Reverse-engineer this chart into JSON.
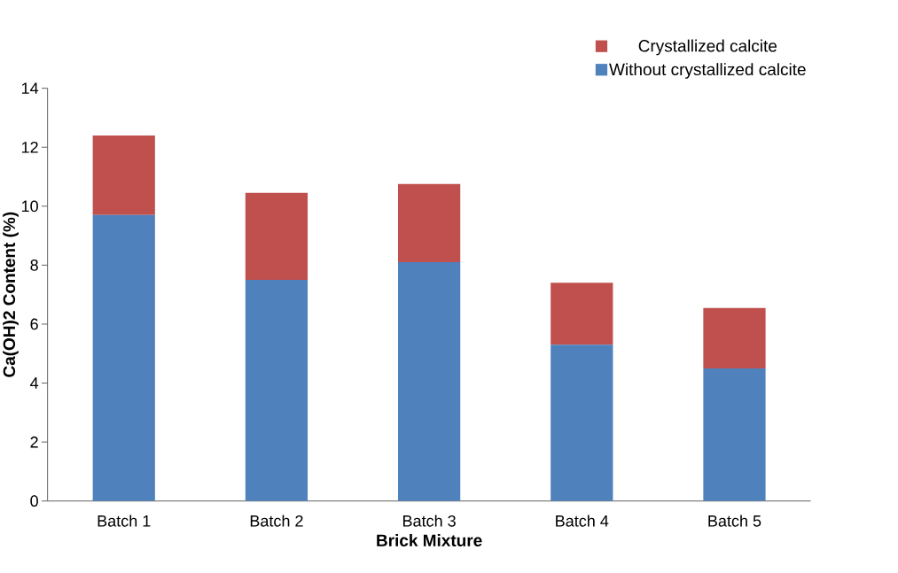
{
  "chart_data": {
    "type": "bar",
    "stacked": true,
    "xlabel": "Brick Mixture",
    "ylabel": "Ca(OH)2 Content (%)",
    "categories": [
      "Batch 1",
      "Batch 2",
      "Batch 3",
      "Batch 4",
      "Batch 5"
    ],
    "series": [
      {
        "name": "Without crystallized calcite",
        "color": "#4f81bd",
        "values": [
          9.7,
          7.5,
          8.1,
          5.3,
          4.5
        ]
      },
      {
        "name": "Crystallized calcite",
        "color": "#c0504d",
        "values": [
          2.7,
          2.95,
          2.65,
          2.1,
          2.05
        ]
      }
    ],
    "ylim": [
      0,
      14
    ],
    "yticks": [
      0,
      2,
      4,
      6,
      8,
      10,
      12,
      14
    ],
    "grid": false,
    "legend": "top right"
  }
}
